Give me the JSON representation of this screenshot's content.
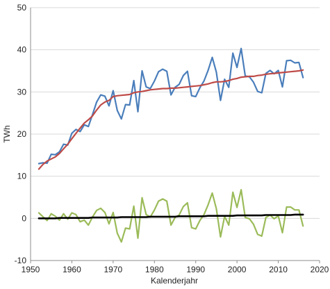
{
  "chart_data": {
    "type": "line",
    "xlabel": "Kalenderjahr",
    "ylabel": "TWh",
    "xlim": [
      1950,
      2020
    ],
    "ylim": [
      -10,
      50
    ],
    "x_ticks": [
      1950,
      1960,
      1970,
      1980,
      1990,
      2000,
      2010,
      2020
    ],
    "y_ticks": [
      -10,
      0,
      10,
      20,
      30,
      40,
      50
    ],
    "grid": "horizontal",
    "legend": "none",
    "x": [
      1952,
      1953,
      1954,
      1955,
      1956,
      1957,
      1958,
      1959,
      1960,
      1961,
      1962,
      1963,
      1964,
      1965,
      1966,
      1967,
      1968,
      1969,
      1970,
      1971,
      1972,
      1973,
      1974,
      1975,
      1976,
      1977,
      1978,
      1979,
      1980,
      1981,
      1982,
      1983,
      1984,
      1985,
      1986,
      1987,
      1988,
      1989,
      1990,
      1991,
      1992,
      1993,
      1994,
      1995,
      1996,
      1997,
      1998,
      1999,
      2000,
      2001,
      2002,
      2003,
      2004,
      2005,
      2006,
      2007,
      2008,
      2009,
      2010,
      2011,
      2012,
      2013,
      2014,
      2015,
      2016
    ],
    "series": [
      {
        "color": "#4a7ebb",
        "values": [
          13.0,
          13.2,
          13.1,
          15.2,
          15.1,
          15.8,
          17.6,
          17.4,
          20.2,
          21.1,
          20.6,
          22.2,
          21.8,
          24.6,
          27.6,
          29.3,
          29.0,
          26.7,
          30.3,
          25.6,
          23.6,
          27.0,
          26.9,
          32.7,
          25.3,
          35.0,
          31.2,
          30.8,
          32.6,
          34.8,
          35.4,
          34.9,
          29.3,
          31.1,
          31.8,
          33.9,
          34.9,
          29.1,
          28.9,
          31.0,
          32.6,
          35.1,
          38.2,
          34.7,
          28.0,
          33.0,
          31.1,
          39.2,
          35.8,
          40.3,
          33.8,
          33.6,
          32.3,
          30.1,
          29.8,
          34.4,
          35.1,
          34.3,
          35.1,
          31.2,
          37.4,
          37.5,
          36.9,
          37.0,
          33.4
        ]
      },
      {
        "color": "#be4b48",
        "values": [
          11.7,
          12.8,
          13.6,
          14.1,
          14.6,
          15.4,
          16.5,
          17.6,
          18.9,
          20.2,
          21.4,
          22.6,
          23.4,
          24.3,
          25.7,
          26.9,
          27.6,
          28.0,
          28.9,
          29.1,
          29.2,
          29.3,
          29.4,
          29.8,
          30.0,
          30.1,
          30.3,
          30.5,
          30.6,
          30.7,
          30.8,
          30.8,
          30.9,
          30.9,
          31.0,
          31.1,
          31.2,
          31.3,
          31.4,
          31.5,
          31.7,
          31.9,
          32.2,
          32.4,
          32.4,
          32.5,
          32.7,
          33.0,
          33.2,
          33.5,
          33.6,
          33.7,
          33.7,
          33.9,
          34.0,
          34.2,
          34.3,
          34.4,
          34.5,
          34.6,
          34.7,
          34.8,
          34.9,
          35.0,
          35.2
        ]
      },
      {
        "color": "#9bbb59",
        "values": [
          1.3,
          0.4,
          -0.5,
          1.1,
          0.5,
          -0.4,
          1.1,
          -0.2,
          1.3,
          0.9,
          -0.8,
          -0.4,
          -1.6,
          0.3,
          1.9,
          2.4,
          1.4,
          -1.3,
          1.4,
          -3.5,
          -5.6,
          -2.3,
          -2.5,
          2.9,
          -4.7,
          4.9,
          0.9,
          0.3,
          2.0,
          4.1,
          4.6,
          4.1,
          -1.6,
          0.2,
          0.8,
          2.8,
          3.7,
          -2.2,
          -2.5,
          -0.5,
          0.9,
          3.2,
          6.0,
          2.3,
          -4.4,
          0.5,
          -1.6,
          6.2,
          2.6,
          6.8,
          0.2,
          -0.1,
          -1.4,
          -3.8,
          -4.2,
          0.2,
          0.8,
          -0.1,
          0.6,
          -3.4,
          2.7,
          2.7,
          2.0,
          2.0,
          -1.8
        ]
      },
      {
        "color": "#000000",
        "values": [
          0.0,
          0.0,
          0.0,
          0.0,
          0.0,
          0.1,
          0.1,
          0.1,
          0.1,
          0.1,
          0.1,
          0.1,
          0.1,
          0.2,
          0.2,
          0.2,
          0.2,
          0.2,
          0.2,
          0.2,
          0.3,
          0.3,
          0.3,
          0.3,
          0.3,
          0.3,
          0.3,
          0.4,
          0.4,
          0.4,
          0.4,
          0.4,
          0.4,
          0.4,
          0.5,
          0.5,
          0.5,
          0.5,
          0.5,
          0.5,
          0.5,
          0.6,
          0.6,
          0.6,
          0.6,
          0.6,
          0.6,
          0.6,
          0.7,
          0.7,
          0.7,
          0.7,
          0.7,
          0.7,
          0.7,
          0.8,
          0.8,
          0.8,
          0.8,
          0.8,
          0.8,
          0.8,
          0.9,
          0.9,
          0.9
        ]
      }
    ]
  }
}
